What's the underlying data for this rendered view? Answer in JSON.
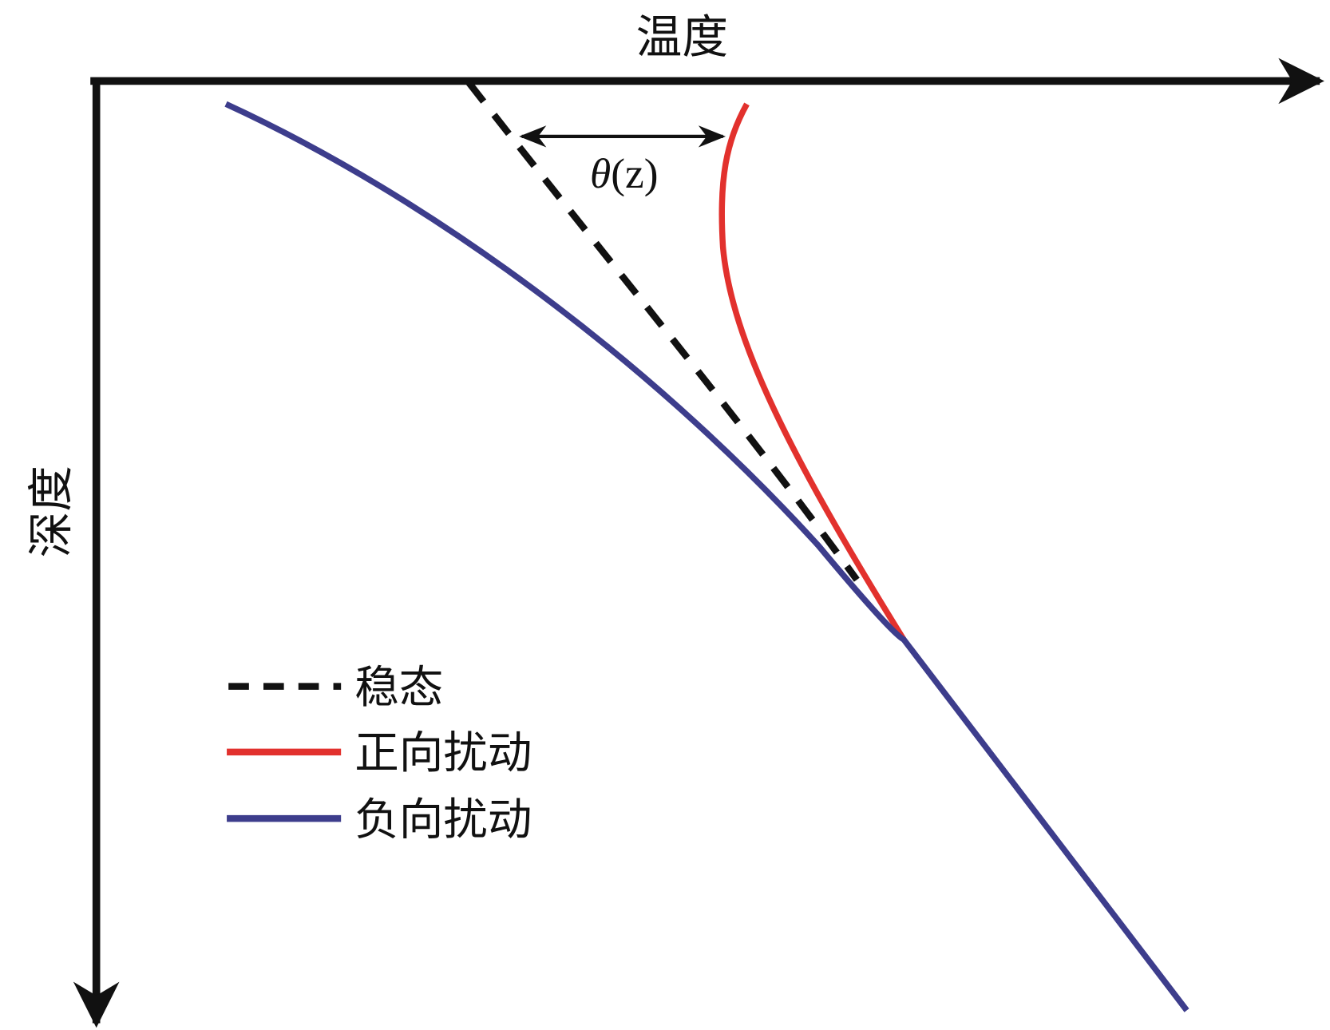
{
  "axes": {
    "x_label": "温度",
    "y_label": "深度"
  },
  "annotation": {
    "symbol": "θ",
    "argument": "(z)"
  },
  "legend": {
    "items": [
      {
        "label": "稳态"
      },
      {
        "label": "正向扰动"
      },
      {
        "label": "负向扰动"
      }
    ]
  }
}
